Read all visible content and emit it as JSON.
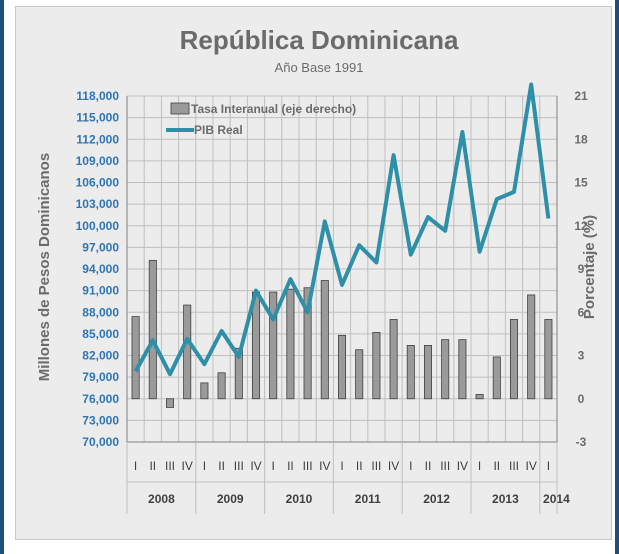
{
  "chart_data": {
    "type": "bar+line",
    "title": "República Dominicana",
    "subtitle": "Año Base 1991",
    "ylabel_left": "Millones de Pesos Dominicanos",
    "ylabel_right": "Porcentaje (%)",
    "ylim_left": [
      70000,
      118000
    ],
    "ylim_right": [
      -3,
      21
    ],
    "yticks_left": [
      "118,000",
      "115,000",
      "112,000",
      "109,000",
      "106,000",
      "103,000",
      "100,000",
      "97,000",
      "94,000",
      "91,000",
      "88,000",
      "85,000",
      "82,000",
      "79,000",
      "76,000",
      "73,000",
      "70,000"
    ],
    "yticks_right": [
      "21",
      "18",
      "15",
      "12",
      "9",
      "6",
      "3",
      "0",
      "-3"
    ],
    "categories": [
      "I",
      "II",
      "III",
      "IV",
      "I",
      "II",
      "III",
      "IV",
      "I",
      "II",
      "III",
      "IV",
      "I",
      "II",
      "III",
      "IV",
      "I",
      "II",
      "III",
      "IV",
      "I",
      "II",
      "III",
      "IV",
      "I"
    ],
    "years": [
      {
        "label": "2008",
        "count": 4
      },
      {
        "label": "2009",
        "count": 4
      },
      {
        "label": "2010",
        "count": 4
      },
      {
        "label": "2011",
        "count": 4
      },
      {
        "label": "2012",
        "count": 4
      },
      {
        "label": "2013",
        "count": 4
      },
      {
        "label": "2014",
        "count": 1
      }
    ],
    "legend": [
      "Tasa Interanual (eje derecho)",
      "PIB Real"
    ],
    "series": [
      {
        "name": "Tasa Interanual (eje derecho)",
        "axis": "right",
        "type": "bar",
        "color": "#8c8c8c",
        "values": [
          5.7,
          9.6,
          -0.6,
          6.5,
          1.1,
          1.8,
          3.5,
          7.4,
          7.4,
          7.6,
          7.7,
          8.2,
          4.4,
          3.4,
          4.6,
          5.5,
          3.7,
          3.7,
          4.1,
          4.1,
          0.3,
          2.9,
          5.5,
          7.2,
          5.5
        ]
      },
      {
        "name": "PIB Real",
        "axis": "left",
        "type": "line",
        "color": "#2e8fa8",
        "values": [
          79800,
          84100,
          79400,
          84300,
          80800,
          85400,
          81800,
          91000,
          87000,
          92600,
          88000,
          100600,
          91800,
          97300,
          94900,
          109800,
          96000,
          101200,
          99300,
          113000,
          96400,
          103700,
          104700,
          119600,
          101000
        ]
      }
    ],
    "grid": true,
    "legend_position": "top-left"
  }
}
